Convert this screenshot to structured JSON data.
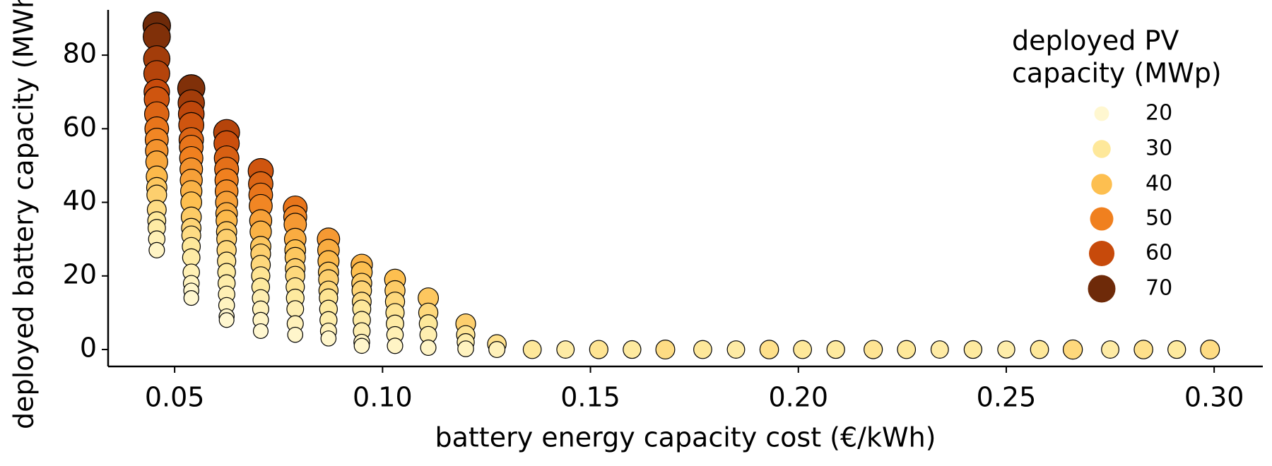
{
  "chart_data": {
    "type": "scatter",
    "x_label": "battery energy capacity cost (€/kWh)",
    "y_label": "deployed battery capacity (MWh)",
    "xlim": [
      0.034,
      0.3117
    ],
    "ylim": [
      -4.6,
      92.3
    ],
    "xticks": [
      {
        "value": 0.05,
        "label": "0.05"
      },
      {
        "value": 0.1,
        "label": "0.10"
      },
      {
        "value": 0.15,
        "label": "0.15"
      },
      {
        "value": 0.2,
        "label": "0.20"
      },
      {
        "value": 0.25,
        "label": "0.25"
      },
      {
        "value": 0.3,
        "label": "0.30"
      }
    ],
    "yticks": [
      0,
      20,
      40,
      60,
      80
    ],
    "size_legend": {
      "title": [
        "deployed PV",
        "capacity (MWp)"
      ],
      "values": [
        20,
        30,
        40,
        50,
        60,
        70
      ],
      "colors": [
        "#fff7d0",
        "#fee89a",
        "#fdbf50",
        "#f0801f",
        "#c74a0b",
        "#6e2a09"
      ]
    },
    "x": [
      0.0457,
      0.0457,
      0.0457,
      0.0457,
      0.0457,
      0.0457,
      0.0457,
      0.0457,
      0.0457,
      0.0457,
      0.0457,
      0.0457,
      0.0457,
      0.0457,
      0.0457,
      0.0457,
      0.0457,
      0.0457,
      0.0457,
      0.054,
      0.054,
      0.054,
      0.054,
      0.054,
      0.054,
      0.054,
      0.054,
      0.054,
      0.054,
      0.054,
      0.054,
      0.054,
      0.054,
      0.054,
      0.054,
      0.054,
      0.054,
      0.054,
      0.054,
      0.0625,
      0.0625,
      0.0625,
      0.0625,
      0.0625,
      0.0625,
      0.0625,
      0.0625,
      0.0625,
      0.0625,
      0.0625,
      0.0625,
      0.0625,
      0.0625,
      0.0625,
      0.0625,
      0.0625,
      0.0625,
      0.0625,
      0.0707,
      0.0707,
      0.0707,
      0.0707,
      0.0707,
      0.0707,
      0.0707,
      0.0707,
      0.0707,
      0.0707,
      0.0707,
      0.0707,
      0.0707,
      0.0707,
      0.0707,
      0.079,
      0.079,
      0.079,
      0.079,
      0.079,
      0.079,
      0.079,
      0.079,
      0.079,
      0.079,
      0.079,
      0.079,
      0.079,
      0.087,
      0.087,
      0.087,
      0.087,
      0.087,
      0.087,
      0.087,
      0.087,
      0.087,
      0.087,
      0.087,
      0.095,
      0.095,
      0.095,
      0.095,
      0.095,
      0.095,
      0.095,
      0.095,
      0.095,
      0.095,
      0.103,
      0.103,
      0.103,
      0.103,
      0.103,
      0.103,
      0.103,
      0.111,
      0.111,
      0.111,
      0.111,
      0.111,
      0.12,
      0.12,
      0.12,
      0.12,
      0.1275,
      0.1275,
      0.136,
      0.144,
      0.152,
      0.16,
      0.168,
      0.177,
      0.185,
      0.193,
      0.201,
      0.209,
      0.218,
      0.226,
      0.234,
      0.242,
      0.25,
      0.258,
      0.266,
      0.275,
      0.283,
      0.291,
      0.299
    ],
    "values": [
      88,
      85,
      79,
      75,
      70,
      68,
      64,
      60,
      57,
      54,
      51,
      47,
      44,
      42,
      38,
      35,
      33,
      30,
      27,
      71,
      67,
      64,
      61,
      57,
      55,
      52,
      49,
      46,
      43,
      40,
      36,
      33,
      31,
      28,
      25,
      21,
      18,
      16,
      14,
      59,
      56,
      52,
      49,
      46,
      43,
      40,
      37,
      35,
      32,
      30,
      27,
      24,
      21,
      18,
      15,
      12,
      9,
      8,
      48.5,
      45,
      42,
      39,
      35,
      32,
      28,
      26,
      23,
      20,
      17,
      14,
      11,
      8,
      5,
      38.5,
      36,
      34,
      30,
      27,
      25,
      22,
      20,
      17,
      14,
      11,
      7,
      4,
      30,
      27,
      24,
      21,
      19,
      16,
      14,
      11,
      8,
      5,
      3,
      23,
      21,
      18,
      16,
      13,
      11,
      8,
      5,
      2,
      1,
      19,
      16,
      13,
      10,
      7,
      4,
      1,
      14,
      10,
      7,
      4,
      0.5,
      7,
      4,
      2,
      0.2,
      1.5,
      0,
      0,
      0,
      0,
      0,
      0,
      0,
      0,
      0,
      0,
      0,
      0,
      0,
      0,
      0,
      0,
      0,
      0,
      0,
      0,
      0,
      0
    ],
    "pv": [
      70,
      68,
      64,
      62,
      60,
      58,
      55,
      52,
      49,
      47,
      44,
      41,
      38,
      36,
      33,
      30,
      28,
      25,
      22,
      68,
      64,
      61,
      58,
      55,
      52,
      50,
      47,
      45,
      42,
      40,
      37,
      35,
      33,
      30,
      28,
      25,
      23,
      21,
      20,
      62,
      59,
      56,
      53,
      50,
      48,
      45,
      43,
      41,
      38,
      36,
      34,
      31,
      29,
      27,
      25,
      23,
      21,
      20,
      58,
      55,
      52,
      49,
      45,
      42,
      38,
      36,
      34,
      31,
      29,
      26,
      24,
      22,
      20,
      52,
      49,
      46,
      43,
      40,
      38,
      36,
      34,
      31,
      29,
      26,
      24,
      21,
      46,
      43,
      41,
      38,
      36,
      34,
      31,
      29,
      27,
      24,
      21,
      42,
      40,
      37,
      35,
      33,
      30,
      28,
      26,
      23,
      21,
      40,
      37,
      34,
      31,
      28,
      25,
      22,
      38,
      34,
      30,
      26,
      22,
      36,
      31,
      27,
      23,
      32,
      24,
      30,
      28,
      31,
      29,
      33,
      30,
      28,
      32,
      30,
      29,
      31,
      30,
      28,
      29,
      27,
      30,
      34,
      28,
      32,
      29,
      33
    ]
  }
}
